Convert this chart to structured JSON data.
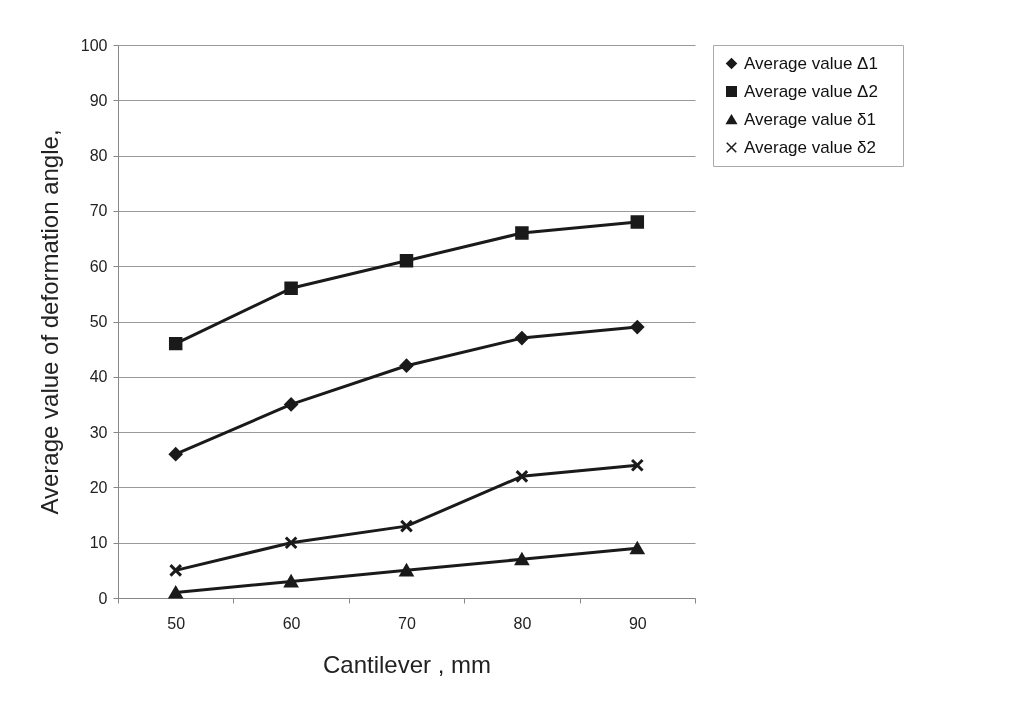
{
  "chart_data": {
    "type": "line",
    "xlabel": "Cantilever  , mm",
    "ylabel": "Average value of deformation angle,",
    "categories": [
      "50",
      "60",
      "70",
      "80",
      "90"
    ],
    "series": [
      {
        "name": "Average value    Δ1",
        "color": "#1a1a1a",
        "marker": "diamond",
        "values": [
          26,
          35,
          42,
          47,
          49
        ]
      },
      {
        "name": "Average value    Δ2",
        "color": "#1a1a1a",
        "marker": "square",
        "values": [
          46,
          56,
          61,
          66,
          68
        ]
      },
      {
        "name": "Average value    δ1",
        "color": "#1a1a1a",
        "marker": "triangle",
        "values": [
          1,
          3,
          5,
          7,
          9
        ]
      },
      {
        "name": "Average value    δ2",
        "color": "#1a1a1a",
        "marker": "cross",
        "values": [
          5,
          10,
          13,
          22,
          24
        ]
      }
    ],
    "ylim": [
      0,
      100
    ],
    "yticks": [
      0,
      10,
      20,
      30,
      40,
      50,
      60,
      70,
      80,
      90,
      100
    ],
    "grid": "y",
    "legend": "right",
    "line_style": "solid"
  }
}
